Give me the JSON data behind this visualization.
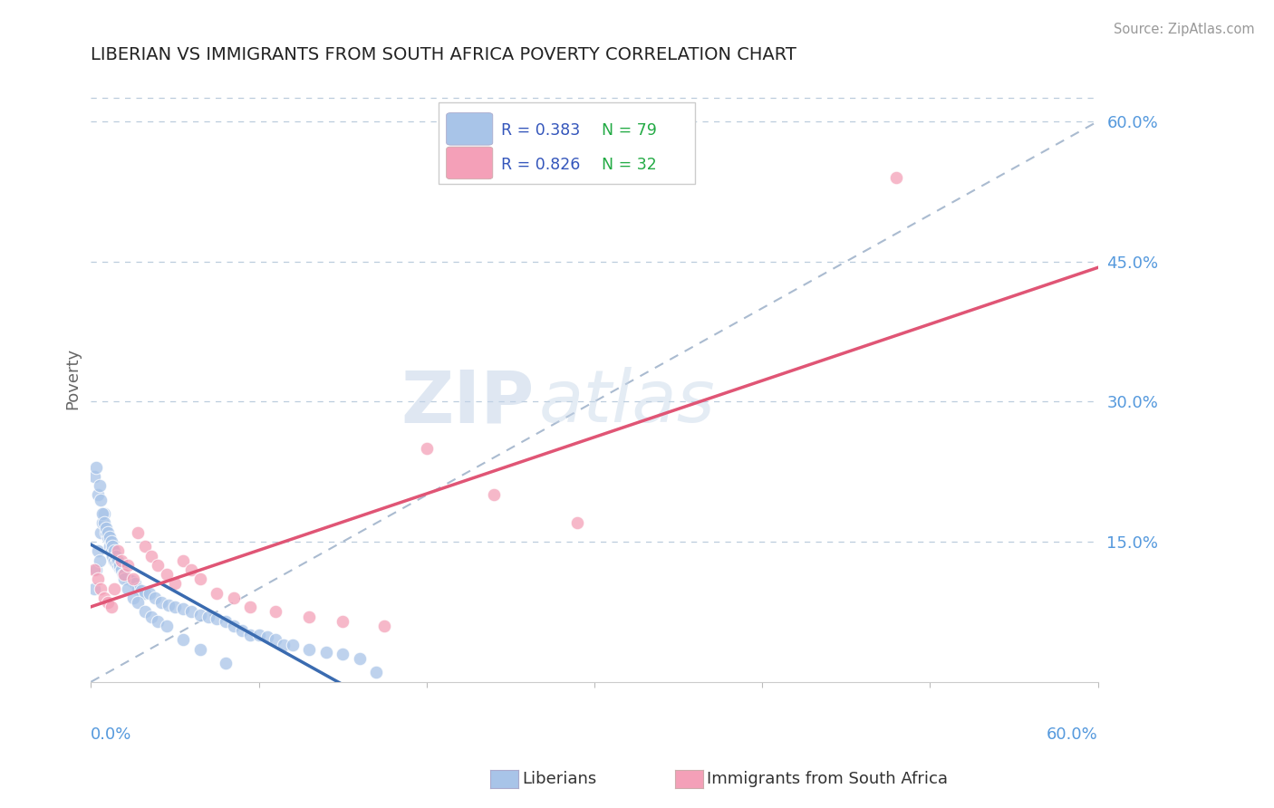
{
  "title": "LIBERIAN VS IMMIGRANTS FROM SOUTH AFRICA POVERTY CORRELATION CHART",
  "source": "Source: ZipAtlas.com",
  "ylabel": "Poverty",
  "xlim": [
    0.0,
    0.6
  ],
  "ylim": [
    0.0,
    0.65
  ],
  "ytick_labels_right": [
    "15.0%",
    "30.0%",
    "45.0%",
    "60.0%"
  ],
  "yticks_right": [
    0.15,
    0.3,
    0.45,
    0.6
  ],
  "blue_R": 0.383,
  "blue_N": 79,
  "pink_R": 0.826,
  "pink_N": 32,
  "blue_color": "#A8C4E8",
  "pink_color": "#F4A0B8",
  "trend_blue_color": "#3A6BB0",
  "trend_pink_color": "#E05575",
  "diag_color": "#AABBD0",
  "title_color": "#222222",
  "axis_label_color": "#5599DD",
  "legend_R_color": "#3355BB",
  "legend_N_color": "#22AA44",
  "watermark_zip": "ZIP",
  "watermark_atlas": "atlas",
  "grid_color": "#BBCCDD",
  "blue_x": [
    0.002,
    0.003,
    0.004,
    0.005,
    0.006,
    0.007,
    0.008,
    0.009,
    0.01,
    0.011,
    0.012,
    0.013,
    0.014,
    0.015,
    0.016,
    0.017,
    0.018,
    0.019,
    0.02,
    0.021,
    0.022,
    0.024,
    0.026,
    0.028,
    0.03,
    0.032,
    0.035,
    0.038,
    0.042,
    0.046,
    0.05,
    0.055,
    0.06,
    0.065,
    0.07,
    0.075,
    0.08,
    0.085,
    0.09,
    0.095,
    0.1,
    0.105,
    0.11,
    0.115,
    0.12,
    0.13,
    0.14,
    0.15,
    0.16,
    0.17,
    0.002,
    0.003,
    0.004,
    0.005,
    0.006,
    0.007,
    0.008,
    0.009,
    0.01,
    0.011,
    0.012,
    0.013,
    0.014,
    0.015,
    0.016,
    0.017,
    0.018,
    0.019,
    0.02,
    0.022,
    0.025,
    0.028,
    0.032,
    0.036,
    0.04,
    0.045,
    0.055,
    0.065,
    0.08
  ],
  "blue_y": [
    0.1,
    0.12,
    0.14,
    0.13,
    0.16,
    0.17,
    0.18,
    0.16,
    0.155,
    0.145,
    0.14,
    0.135,
    0.13,
    0.128,
    0.125,
    0.122,
    0.12,
    0.118,
    0.115,
    0.112,
    0.11,
    0.108,
    0.105,
    0.1,
    0.098,
    0.095,
    0.095,
    0.09,
    0.085,
    0.082,
    0.08,
    0.078,
    0.075,
    0.072,
    0.07,
    0.068,
    0.065,
    0.06,
    0.055,
    0.05,
    0.05,
    0.048,
    0.045,
    0.04,
    0.04,
    0.035,
    0.032,
    0.03,
    0.025,
    0.01,
    0.22,
    0.23,
    0.2,
    0.21,
    0.195,
    0.18,
    0.17,
    0.165,
    0.16,
    0.155,
    0.15,
    0.145,
    0.14,
    0.135,
    0.13,
    0.125,
    0.12,
    0.115,
    0.11,
    0.1,
    0.09,
    0.085,
    0.075,
    0.07,
    0.065,
    0.06,
    0.045,
    0.035,
    0.02
  ],
  "pink_x": [
    0.002,
    0.004,
    0.006,
    0.008,
    0.01,
    0.012,
    0.014,
    0.016,
    0.018,
    0.02,
    0.022,
    0.025,
    0.028,
    0.032,
    0.036,
    0.04,
    0.045,
    0.05,
    0.055,
    0.06,
    0.065,
    0.075,
    0.085,
    0.095,
    0.11,
    0.13,
    0.15,
    0.175,
    0.2,
    0.24,
    0.29,
    0.48
  ],
  "pink_y": [
    0.12,
    0.11,
    0.1,
    0.09,
    0.085,
    0.08,
    0.1,
    0.14,
    0.13,
    0.115,
    0.125,
    0.11,
    0.16,
    0.145,
    0.135,
    0.125,
    0.115,
    0.105,
    0.13,
    0.12,
    0.11,
    0.095,
    0.09,
    0.08,
    0.075,
    0.07,
    0.065,
    0.06,
    0.25,
    0.2,
    0.17,
    0.54
  ]
}
